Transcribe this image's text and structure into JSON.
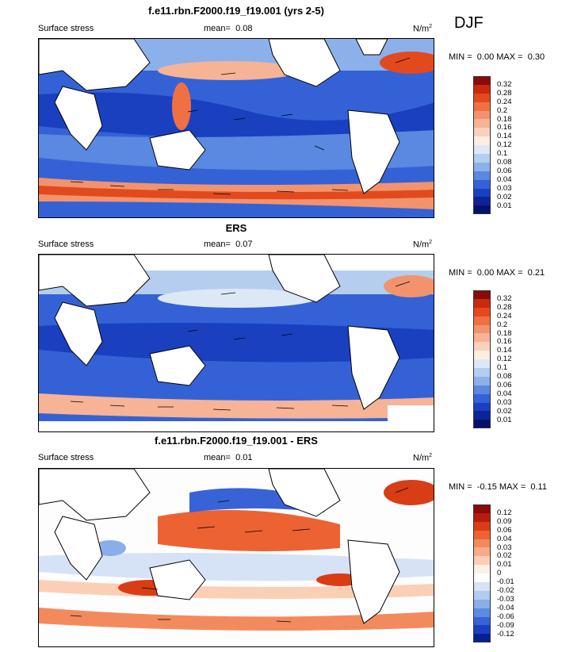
{
  "season_label": "DJF",
  "panels": [
    {
      "title": "f.e11.rbn.F2000.f19_f19.001 (yrs 2-5)",
      "variable": "Surface stress",
      "mean_label": "mean=",
      "mean_value": "0.08",
      "units": "N/m",
      "units_sup": "2",
      "min_label": "MIN =",
      "min_value": "0.00",
      "max_label": "MAX =",
      "max_value": "0.30",
      "colorbar": {
        "labels": [
          "0.32",
          "0.28",
          "0.24",
          "0.2",
          "0.18",
          "0.16",
          "0.14",
          "0.12",
          "0.1",
          "0.08",
          "0.06",
          "0.04",
          "0.03",
          "0.02",
          "0.01"
        ],
        "colors": [
          "#8b0a0a",
          "#c8290f",
          "#e24a1e",
          "#f07043",
          "#f3936d",
          "#f7b395",
          "#fad2bc",
          "#fdeee3",
          "#dde8f7",
          "#b5cdef",
          "#8cb0ea",
          "#5b88e0",
          "#3462d6",
          "#1a40c0",
          "#0c2497",
          "#06106b"
        ]
      }
    },
    {
      "title": "ERS",
      "variable": "Surface stress",
      "mean_label": "mean=",
      "mean_value": "0.07",
      "units": "N/m",
      "units_sup": "2",
      "min_label": "MIN =",
      "min_value": "0.00",
      "max_label": "MAX =",
      "max_value": "0.21",
      "colorbar": {
        "labels": [
          "0.32",
          "0.28",
          "0.24",
          "0.2",
          "0.18",
          "0.16",
          "0.14",
          "0.12",
          "0.1",
          "0.08",
          "0.06",
          "0.04",
          "0.03",
          "0.02",
          "0.01"
        ],
        "colors": [
          "#8b0a0a",
          "#c8290f",
          "#e24a1e",
          "#f07043",
          "#f3936d",
          "#f7b395",
          "#fad2bc",
          "#fdeee3",
          "#dde8f7",
          "#b5cdef",
          "#8cb0ea",
          "#5b88e0",
          "#3462d6",
          "#1a40c0",
          "#0c2497",
          "#06106b"
        ]
      }
    },
    {
      "title": "f.e11.rbn.F2000.f19_f19.001 - ERS",
      "variable": "Surface stress",
      "mean_label": "mean=",
      "mean_value": "0.01",
      "units": "N/m",
      "units_sup": "2",
      "min_label": "MIN =",
      "min_value": "-0.15",
      "max_label": "MAX =",
      "max_value": "0.11",
      "colorbar": {
        "labels": [
          "0.12",
          "0.09",
          "0.06",
          "0.04",
          "0.03",
          "0.02",
          "0.01",
          "0",
          "-0.01",
          "-0.02",
          "-0.03",
          "-0.04",
          "-0.06",
          "-0.09",
          "-0.12"
        ],
        "colors": [
          "#8b0a0a",
          "#b81d0c",
          "#d93d16",
          "#ec6233",
          "#f38a5e",
          "#f7ab88",
          "#fbcfb6",
          "#fdf0e6",
          "#fdfdfd",
          "#d6e3f6",
          "#b3cbf0",
          "#8aaeea",
          "#5d8ae2",
          "#3763d6",
          "#1a3fbf",
          "#0a1f8f"
        ]
      }
    }
  ],
  "chart_data": [
    {
      "type": "heatmap",
      "title": "f.e11.rbn.F2000.f19_f19.001 (yrs 2-5)",
      "variable": "Surface stress",
      "units": "N/m2",
      "mean": 0.08,
      "min": 0.0,
      "max": 0.3,
      "contour_levels": [
        0.01,
        0.02,
        0.03,
        0.04,
        0.06,
        0.08,
        0.1,
        0.12,
        0.14,
        0.16,
        0.18,
        0.2,
        0.24,
        0.28,
        0.32
      ]
    },
    {
      "type": "heatmap",
      "title": "ERS",
      "variable": "Surface stress",
      "units": "N/m2",
      "mean": 0.07,
      "min": 0.0,
      "max": 0.21,
      "contour_levels": [
        0.01,
        0.02,
        0.03,
        0.04,
        0.06,
        0.08,
        0.1,
        0.12,
        0.14,
        0.16,
        0.18,
        0.2,
        0.24,
        0.28,
        0.32
      ]
    },
    {
      "type": "heatmap",
      "title": "f.e11.rbn.F2000.f19_f19.001 - ERS",
      "variable": "Surface stress",
      "units": "N/m2",
      "mean": 0.01,
      "min": -0.15,
      "max": 0.11,
      "contour_levels": [
        -0.12,
        -0.09,
        -0.06,
        -0.04,
        -0.03,
        -0.02,
        -0.01,
        0,
        0.01,
        0.02,
        0.03,
        0.04,
        0.06,
        0.09,
        0.12
      ]
    }
  ]
}
